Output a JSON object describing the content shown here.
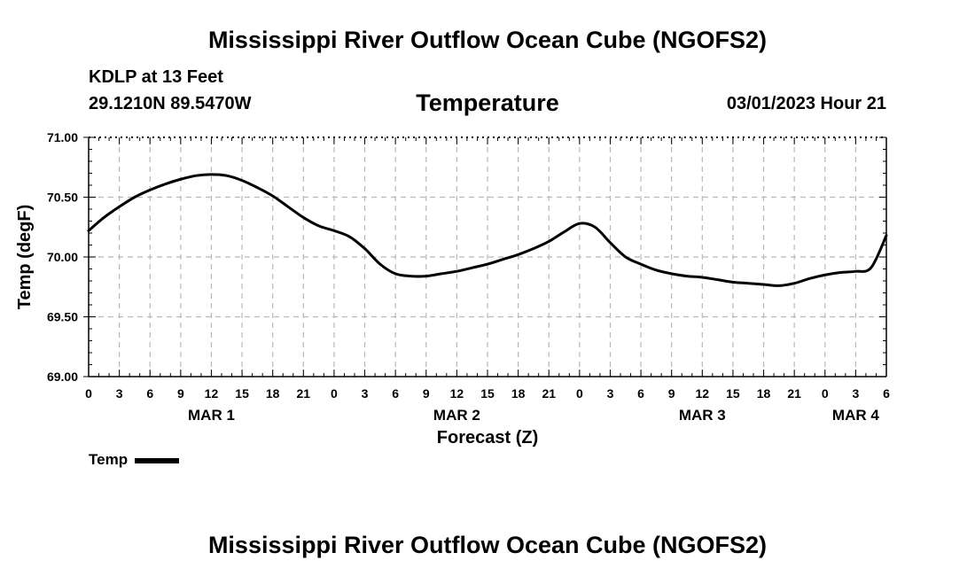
{
  "header": {
    "title": "Mississippi River Outflow Ocean Cube (NGOFS2)",
    "station": "KDLP at 13 Feet",
    "coords": "29.1210N  89.5470W",
    "variable": "Temperature",
    "datetime": "03/01/2023 Hour 21"
  },
  "footer": {
    "title": "Mississippi River Outflow Ocean Cube (NGOFS2)"
  },
  "legend": {
    "label": "Temp"
  },
  "chart_data": {
    "type": "line",
    "title": "Temperature",
    "xlabel": "Forecast (Z)",
    "ylabel": "Temp (degF)",
    "xlim": [
      0,
      78
    ],
    "ylim": [
      69.0,
      71.0
    ],
    "y_ticks": [
      "69.00",
      "69.50",
      "70.00",
      "70.50",
      "71.00"
    ],
    "x_tick_labels": [
      "0",
      "3",
      "6",
      "9",
      "12",
      "15",
      "18",
      "21",
      "0",
      "3",
      "6",
      "9",
      "12",
      "15",
      "18",
      "21",
      "0",
      "3",
      "6",
      "9",
      "12",
      "15",
      "18",
      "21",
      "0",
      "3",
      "6"
    ],
    "day_labels": [
      {
        "label": "MAR 1",
        "hour": 12
      },
      {
        "label": "MAR 2",
        "hour": 36
      },
      {
        "label": "MAR 3",
        "hour": 60
      },
      {
        "label": "MAR 4",
        "hour": 75
      }
    ],
    "grid": true,
    "series": [
      {
        "name": "Temp",
        "x": [
          0,
          1.5,
          3,
          4.5,
          6,
          7.5,
          9,
          10.5,
          12,
          13.5,
          15,
          16.5,
          18,
          19.5,
          21,
          22.5,
          24,
          25.5,
          27,
          28.5,
          30,
          31.5,
          33,
          34.5,
          36,
          37.5,
          39,
          40.5,
          42,
          43.5,
          45,
          46.5,
          48,
          49.5,
          51,
          52.5,
          54,
          55.5,
          57,
          58.5,
          60,
          61.5,
          63,
          64.5,
          66,
          67.5,
          69,
          70.5,
          72,
          73.5,
          75,
          76.5,
          78
        ],
        "values": [
          70.22,
          70.33,
          70.42,
          70.5,
          70.56,
          70.61,
          70.65,
          70.68,
          70.69,
          70.68,
          70.64,
          70.58,
          70.51,
          70.42,
          70.33,
          70.26,
          70.22,
          70.17,
          70.07,
          69.94,
          69.86,
          69.84,
          69.84,
          69.86,
          69.88,
          69.91,
          69.94,
          69.98,
          70.02,
          70.07,
          70.13,
          70.21,
          70.28,
          70.25,
          70.12,
          70.0,
          69.94,
          69.89,
          69.86,
          69.84,
          69.83,
          69.81,
          69.79,
          69.78,
          69.77,
          69.76,
          69.78,
          69.82,
          69.85,
          69.87,
          69.88,
          69.91,
          70.18
        ]
      }
    ]
  }
}
